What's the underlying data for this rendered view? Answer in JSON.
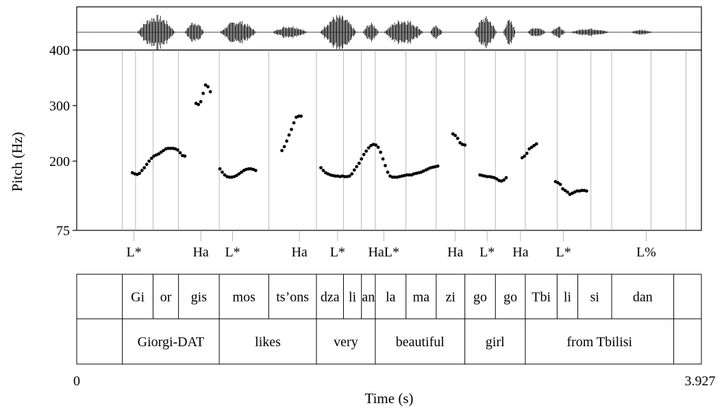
{
  "chart_data": {
    "type": "scatter",
    "title": "",
    "xlabel": "Time (s)",
    "ylabel": "Pitch (Hz)",
    "xlim": [
      0,
      3.927
    ],
    "x_tick_labels": [
      "0",
      "3.927"
    ],
    "ylim": [
      75,
      400
    ],
    "y_tick_labels": [
      "400",
      "300",
      "200",
      "75"
    ],
    "y_ticks": [
      400,
      300,
      200,
      75
    ],
    "waveform_shown": true,
    "tier_boundaries": [
      0.287,
      0.37,
      0.48,
      0.64,
      0.896,
      1.207,
      1.507,
      1.677,
      1.79,
      1.877,
      2.07,
      2.26,
      2.44,
      2.632,
      2.82,
      3.02,
      3.233,
      3.363,
      3.61,
      3.83
    ],
    "pitch": [
      {
        "x": 0.35,
        "y": 179
      },
      {
        "x": 0.365,
        "y": 177
      },
      {
        "x": 0.38,
        "y": 176
      },
      {
        "x": 0.395,
        "y": 178
      },
      {
        "x": 0.41,
        "y": 183
      },
      {
        "x": 0.425,
        "y": 188
      },
      {
        "x": 0.44,
        "y": 194
      },
      {
        "x": 0.455,
        "y": 200
      },
      {
        "x": 0.47,
        "y": 205
      },
      {
        "x": 0.485,
        "y": 209
      },
      {
        "x": 0.5,
        "y": 211
      },
      {
        "x": 0.515,
        "y": 213
      },
      {
        "x": 0.53,
        "y": 216
      },
      {
        "x": 0.545,
        "y": 219
      },
      {
        "x": 0.56,
        "y": 222
      },
      {
        "x": 0.575,
        "y": 223
      },
      {
        "x": 0.59,
        "y": 223
      },
      {
        "x": 0.605,
        "y": 223
      },
      {
        "x": 0.62,
        "y": 222
      },
      {
        "x": 0.635,
        "y": 220
      },
      {
        "x": 0.65,
        "y": 215
      },
      {
        "x": 0.665,
        "y": 210
      },
      {
        "x": 0.68,
        "y": 209
      },
      {
        "x": 0.75,
        "y": 304
      },
      {
        "x": 0.765,
        "y": 302
      },
      {
        "x": 0.78,
        "y": 307
      },
      {
        "x": 0.795,
        "y": 322
      },
      {
        "x": 0.81,
        "y": 337
      },
      {
        "x": 0.825,
        "y": 334
      },
      {
        "x": 0.84,
        "y": 325
      },
      {
        "x": 0.9,
        "y": 186
      },
      {
        "x": 0.915,
        "y": 180
      },
      {
        "x": 0.93,
        "y": 175
      },
      {
        "x": 0.945,
        "y": 172
      },
      {
        "x": 0.96,
        "y": 171
      },
      {
        "x": 0.975,
        "y": 171
      },
      {
        "x": 0.99,
        "y": 172
      },
      {
        "x": 1.005,
        "y": 174
      },
      {
        "x": 1.02,
        "y": 177
      },
      {
        "x": 1.035,
        "y": 180
      },
      {
        "x": 1.05,
        "y": 183
      },
      {
        "x": 1.065,
        "y": 185
      },
      {
        "x": 1.08,
        "y": 186
      },
      {
        "x": 1.095,
        "y": 186
      },
      {
        "x": 1.11,
        "y": 185
      },
      {
        "x": 1.125,
        "y": 183
      },
      {
        "x": 1.29,
        "y": 219
      },
      {
        "x": 1.305,
        "y": 226
      },
      {
        "x": 1.32,
        "y": 236
      },
      {
        "x": 1.335,
        "y": 247
      },
      {
        "x": 1.35,
        "y": 257
      },
      {
        "x": 1.365,
        "y": 269
      },
      {
        "x": 1.38,
        "y": 279
      },
      {
        "x": 1.395,
        "y": 281
      },
      {
        "x": 1.41,
        "y": 281
      },
      {
        "x": 1.535,
        "y": 188
      },
      {
        "x": 1.55,
        "y": 183
      },
      {
        "x": 1.565,
        "y": 179
      },
      {
        "x": 1.58,
        "y": 177
      },
      {
        "x": 1.595,
        "y": 175
      },
      {
        "x": 1.61,
        "y": 174
      },
      {
        "x": 1.625,
        "y": 173
      },
      {
        "x": 1.64,
        "y": 173
      },
      {
        "x": 1.655,
        "y": 172
      },
      {
        "x": 1.67,
        "y": 173
      },
      {
        "x": 1.685,
        "y": 172
      },
      {
        "x": 1.7,
        "y": 172
      },
      {
        "x": 1.715,
        "y": 173
      },
      {
        "x": 1.73,
        "y": 177
      },
      {
        "x": 1.745,
        "y": 184
      },
      {
        "x": 1.76,
        "y": 190
      },
      {
        "x": 1.775,
        "y": 196
      },
      {
        "x": 1.79,
        "y": 204
      },
      {
        "x": 1.805,
        "y": 212
      },
      {
        "x": 1.82,
        "y": 218
      },
      {
        "x": 1.835,
        "y": 224
      },
      {
        "x": 1.85,
        "y": 228
      },
      {
        "x": 1.865,
        "y": 230
      },
      {
        "x": 1.88,
        "y": 229
      },
      {
        "x": 1.895,
        "y": 225
      },
      {
        "x": 1.91,
        "y": 216
      },
      {
        "x": 1.925,
        "y": 204
      },
      {
        "x": 1.94,
        "y": 192
      },
      {
        "x": 1.955,
        "y": 180
      },
      {
        "x": 1.97,
        "y": 173
      },
      {
        "x": 1.985,
        "y": 171
      },
      {
        "x": 2.0,
        "y": 171
      },
      {
        "x": 2.015,
        "y": 171
      },
      {
        "x": 2.03,
        "y": 172
      },
      {
        "x": 2.045,
        "y": 173
      },
      {
        "x": 2.06,
        "y": 174
      },
      {
        "x": 2.075,
        "y": 175
      },
      {
        "x": 2.09,
        "y": 175
      },
      {
        "x": 2.105,
        "y": 175
      },
      {
        "x": 2.12,
        "y": 177
      },
      {
        "x": 2.135,
        "y": 178
      },
      {
        "x": 2.15,
        "y": 179
      },
      {
        "x": 2.165,
        "y": 180
      },
      {
        "x": 2.18,
        "y": 182
      },
      {
        "x": 2.195,
        "y": 184
      },
      {
        "x": 2.21,
        "y": 186
      },
      {
        "x": 2.225,
        "y": 188
      },
      {
        "x": 2.24,
        "y": 189
      },
      {
        "x": 2.255,
        "y": 190
      },
      {
        "x": 2.27,
        "y": 191
      },
      {
        "x": 2.365,
        "y": 249
      },
      {
        "x": 2.38,
        "y": 246
      },
      {
        "x": 2.395,
        "y": 241
      },
      {
        "x": 2.41,
        "y": 233
      },
      {
        "x": 2.425,
        "y": 230
      },
      {
        "x": 2.44,
        "y": 229
      },
      {
        "x": 2.535,
        "y": 175
      },
      {
        "x": 2.55,
        "y": 174
      },
      {
        "x": 2.565,
        "y": 173
      },
      {
        "x": 2.58,
        "y": 172
      },
      {
        "x": 2.595,
        "y": 172
      },
      {
        "x": 2.61,
        "y": 171
      },
      {
        "x": 2.625,
        "y": 170
      },
      {
        "x": 2.64,
        "y": 168
      },
      {
        "x": 2.655,
        "y": 165
      },
      {
        "x": 2.67,
        "y": 164
      },
      {
        "x": 2.685,
        "y": 166
      },
      {
        "x": 2.7,
        "y": 170
      },
      {
        "x": 2.8,
        "y": 206
      },
      {
        "x": 2.815,
        "y": 209
      },
      {
        "x": 2.83,
        "y": 214
      },
      {
        "x": 2.845,
        "y": 222
      },
      {
        "x": 2.86,
        "y": 225
      },
      {
        "x": 2.875,
        "y": 228
      },
      {
        "x": 2.89,
        "y": 231
      },
      {
        "x": 3.01,
        "y": 163
      },
      {
        "x": 3.025,
        "y": 161
      },
      {
        "x": 3.04,
        "y": 158
      },
      {
        "x": 3.055,
        "y": 150
      },
      {
        "x": 3.07,
        "y": 147
      },
      {
        "x": 3.085,
        "y": 144
      },
      {
        "x": 3.1,
        "y": 140
      },
      {
        "x": 3.115,
        "y": 142
      },
      {
        "x": 3.13,
        "y": 144
      },
      {
        "x": 3.145,
        "y": 146
      },
      {
        "x": 3.16,
        "y": 146
      },
      {
        "x": 3.175,
        "y": 147
      },
      {
        "x": 3.19,
        "y": 147
      },
      {
        "x": 3.205,
        "y": 146
      }
    ],
    "tone_tier": [
      {
        "label": "L*",
        "x": 0.36
      },
      {
        "label": "Ha",
        "x": 0.78
      },
      {
        "label": "L*",
        "x": 0.98
      },
      {
        "label": "Ha",
        "x": 1.4
      },
      {
        "label": "L*",
        "x": 1.64
      },
      {
        "label": "HaL*",
        "x": 1.93
      },
      {
        "label": "Ha",
        "x": 2.38
      },
      {
        "label": "L*",
        "x": 2.58
      },
      {
        "label": "Ha",
        "x": 2.79
      },
      {
        "label": "L*",
        "x": 3.06
      },
      {
        "label": "L%",
        "x": 3.58
      }
    ],
    "syllable_tier": [
      {
        "label": "Gi",
        "start": 0.287,
        "end": 0.48
      },
      {
        "label": "or",
        "start": 0.48,
        "end": 0.64
      },
      {
        "label": "gis",
        "start": 0.64,
        "end": 0.896
      },
      {
        "label": "mos",
        "start": 0.896,
        "end": 1.207
      },
      {
        "label": "ts’ons",
        "start": 1.207,
        "end": 1.507
      },
      {
        "label": "dza",
        "start": 1.507,
        "end": 1.677
      },
      {
        "label": "li",
        "start": 1.677,
        "end": 1.79
      },
      {
        "label": "an",
        "start": 1.79,
        "end": 1.877
      },
      {
        "label": "la",
        "start": 1.877,
        "end": 2.07
      },
      {
        "label": "ma",
        "start": 2.07,
        "end": 2.26
      },
      {
        "label": "zi",
        "start": 2.26,
        "end": 2.44
      },
      {
        "label": "go",
        "start": 2.44,
        "end": 2.632
      },
      {
        "label": "go",
        "start": 2.632,
        "end": 2.82
      },
      {
        "label": "Tbi",
        "start": 2.82,
        "end": 3.02
      },
      {
        "label": "li",
        "start": 3.02,
        "end": 3.15
      },
      {
        "label": "si",
        "start": 3.15,
        "end": 3.363
      },
      {
        "label": "dan",
        "start": 3.363,
        "end": 3.753
      }
    ],
    "word_tier": [
      {
        "label": "Giorgi-DAT",
        "start": 0.287,
        "end": 0.896
      },
      {
        "label": "likes",
        "start": 0.896,
        "end": 1.507
      },
      {
        "label": "very",
        "start": 1.507,
        "end": 1.877
      },
      {
        "label": "beautiful",
        "start": 1.877,
        "end": 2.44
      },
      {
        "label": "girl",
        "start": 2.44,
        "end": 2.82
      },
      {
        "label": "from Tbilisi",
        "start": 2.82,
        "end": 3.753
      }
    ],
    "syllable_tier_end": 3.753,
    "word_tier_end": 3.753
  }
}
